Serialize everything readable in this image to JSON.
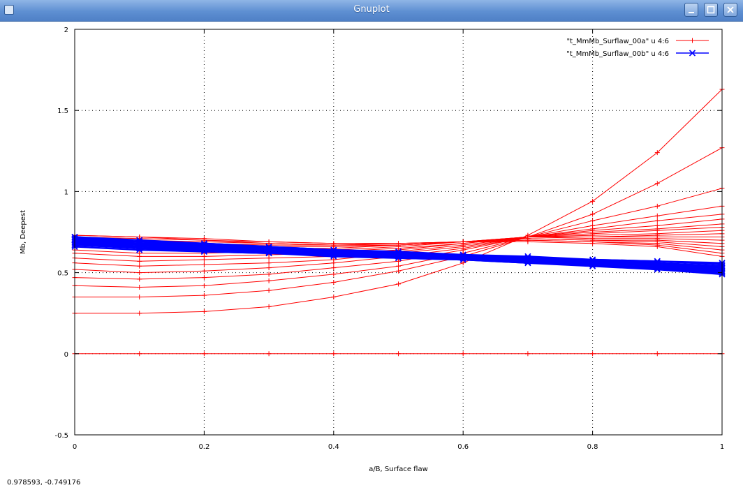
{
  "window": {
    "title": "Gnuplot"
  },
  "status": {
    "coords": "0.978593, -0.749176"
  },
  "chart_data": {
    "type": "line",
    "xlabel": "a/B, Surface flaw",
    "ylabel": "Mb, Deepest",
    "xlim": [
      0,
      1
    ],
    "ylim": [
      -0.5,
      2
    ],
    "xticks": [
      "0",
      "0.2",
      "0.4",
      "0.6",
      "0.8",
      "1"
    ],
    "yticks": [
      "-0.5",
      "0",
      "0.5",
      "1",
      "1.5",
      "2"
    ],
    "grid": true,
    "legend_position": "top-right",
    "x": [
      0,
      0.1,
      0.2,
      0.3,
      0.4,
      0.5,
      0.6,
      0.7,
      0.8,
      0.9,
      1.0
    ],
    "series": [
      {
        "name": "\"t_MmMb_Surflaw_00a\" u 4:6",
        "color": "#ff0000",
        "marker": "plus",
        "curves": [
          [
            0,
            0,
            0,
            0,
            0,
            0,
            0,
            0,
            0,
            0,
            0
          ],
          [
            0.25,
            0.25,
            0.26,
            0.29,
            0.35,
            0.43,
            0.56,
            0.73,
            0.94,
            1.24,
            1.63
          ],
          [
            0.35,
            0.35,
            0.36,
            0.39,
            0.44,
            0.51,
            0.6,
            0.72,
            0.86,
            1.05,
            1.27
          ],
          [
            0.42,
            0.41,
            0.42,
            0.45,
            0.49,
            0.54,
            0.62,
            0.72,
            0.82,
            0.91,
            1.02
          ],
          [
            0.47,
            0.46,
            0.47,
            0.49,
            0.53,
            0.57,
            0.64,
            0.72,
            0.79,
            0.85,
            0.91
          ],
          [
            0.52,
            0.5,
            0.51,
            0.53,
            0.56,
            0.6,
            0.65,
            0.72,
            0.77,
            0.82,
            0.86
          ],
          [
            0.56,
            0.54,
            0.55,
            0.56,
            0.58,
            0.62,
            0.66,
            0.72,
            0.76,
            0.79,
            0.83
          ],
          [
            0.59,
            0.57,
            0.58,
            0.59,
            0.6,
            0.63,
            0.67,
            0.72,
            0.75,
            0.77,
            0.8
          ],
          [
            0.62,
            0.6,
            0.6,
            0.61,
            0.62,
            0.64,
            0.68,
            0.72,
            0.74,
            0.76,
            0.78
          ],
          [
            0.64,
            0.62,
            0.62,
            0.63,
            0.63,
            0.65,
            0.68,
            0.72,
            0.73,
            0.74,
            0.76
          ],
          [
            0.66,
            0.64,
            0.64,
            0.64,
            0.64,
            0.66,
            0.69,
            0.72,
            0.72,
            0.73,
            0.74
          ],
          [
            0.68,
            0.66,
            0.65,
            0.65,
            0.65,
            0.67,
            0.69,
            0.72,
            0.72,
            0.72,
            0.72
          ],
          [
            0.7,
            0.68,
            0.67,
            0.66,
            0.66,
            0.67,
            0.69,
            0.72,
            0.71,
            0.71,
            0.7
          ],
          [
            0.71,
            0.69,
            0.68,
            0.67,
            0.67,
            0.67,
            0.69,
            0.71,
            0.7,
            0.7,
            0.68
          ],
          [
            0.72,
            0.7,
            0.69,
            0.68,
            0.67,
            0.67,
            0.69,
            0.71,
            0.7,
            0.69,
            0.66
          ],
          [
            0.72,
            0.71,
            0.7,
            0.68,
            0.67,
            0.68,
            0.69,
            0.7,
            0.69,
            0.68,
            0.64
          ],
          [
            0.73,
            0.72,
            0.7,
            0.69,
            0.68,
            0.68,
            0.69,
            0.7,
            0.69,
            0.67,
            0.62
          ],
          [
            0.73,
            0.72,
            0.71,
            0.69,
            0.68,
            0.68,
            0.69,
            0.69,
            0.68,
            0.66,
            0.6
          ]
        ]
      },
      {
        "name": "\"t_MmMb_Surflaw_00b\" u 4:6",
        "color": "#0000ff",
        "marker": "cross",
        "curves": [
          [
            0.66,
            0.64,
            0.63,
            0.62,
            0.6,
            0.59,
            0.58,
            0.56,
            0.54,
            0.52,
            0.49
          ],
          [
            0.67,
            0.65,
            0.63,
            0.62,
            0.61,
            0.59,
            0.58,
            0.56,
            0.55,
            0.52,
            0.5
          ],
          [
            0.68,
            0.65,
            0.64,
            0.63,
            0.61,
            0.6,
            0.58,
            0.57,
            0.55,
            0.53,
            0.5
          ],
          [
            0.68,
            0.66,
            0.64,
            0.63,
            0.61,
            0.6,
            0.59,
            0.57,
            0.55,
            0.53,
            0.51
          ],
          [
            0.69,
            0.66,
            0.65,
            0.63,
            0.62,
            0.6,
            0.59,
            0.57,
            0.56,
            0.54,
            0.51
          ],
          [
            0.69,
            0.67,
            0.65,
            0.64,
            0.62,
            0.61,
            0.59,
            0.58,
            0.56,
            0.54,
            0.52
          ],
          [
            0.7,
            0.67,
            0.66,
            0.64,
            0.62,
            0.61,
            0.6,
            0.58,
            0.56,
            0.55,
            0.52
          ],
          [
            0.7,
            0.68,
            0.66,
            0.65,
            0.63,
            0.61,
            0.6,
            0.58,
            0.57,
            0.55,
            0.53
          ],
          [
            0.71,
            0.68,
            0.67,
            0.65,
            0.63,
            0.62,
            0.6,
            0.59,
            0.57,
            0.56,
            0.53
          ],
          [
            0.71,
            0.69,
            0.67,
            0.65,
            0.64,
            0.62,
            0.61,
            0.59,
            0.58,
            0.56,
            0.54
          ],
          [
            0.72,
            0.69,
            0.68,
            0.66,
            0.64,
            0.62,
            0.61,
            0.59,
            0.58,
            0.57,
            0.55
          ],
          [
            0.72,
            0.7,
            0.68,
            0.66,
            0.64,
            0.63,
            0.61,
            0.6,
            0.58,
            0.57,
            0.56
          ]
        ]
      }
    ]
  }
}
